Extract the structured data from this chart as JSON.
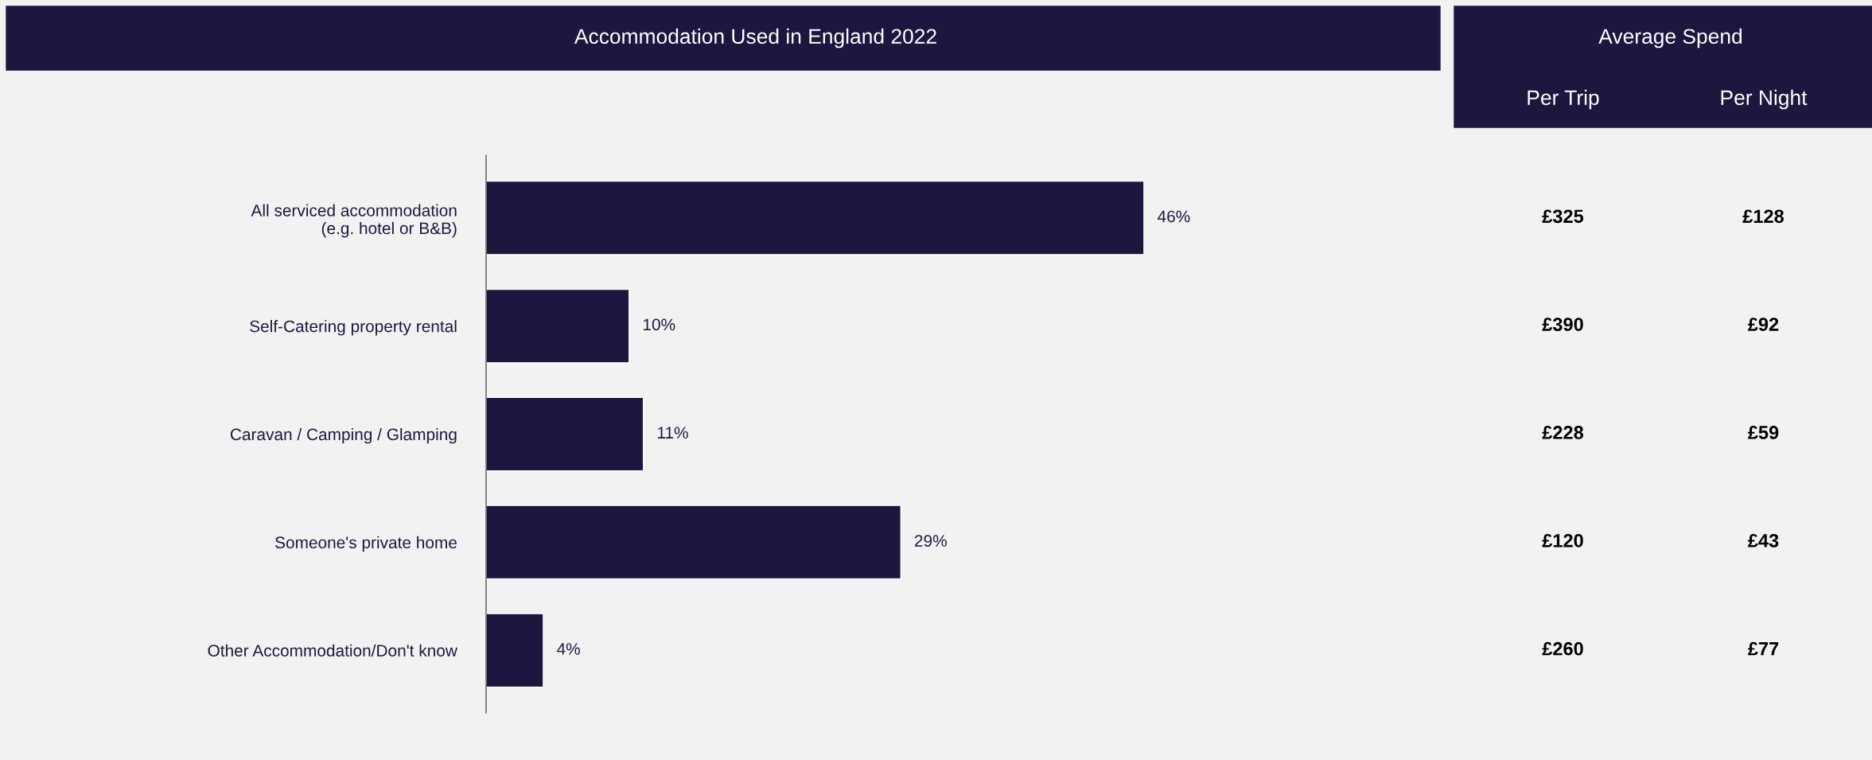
{
  "chart_data": [
    {
      "type": "bar",
      "orientation": "horizontal",
      "title": "Accommodation Used in England 2022",
      "categories": [
        "All serviced accommodation\n(e.g. hotel or B&B)",
        "Self-Catering property rental",
        "Caravan / Camping / Glamping",
        "Someone's private home",
        "Other Accommodation/Don't know"
      ],
      "values": [
        46,
        10,
        11,
        29,
        4
      ],
      "value_labels": [
        "46%",
        "10%",
        "11%",
        "29%",
        "4%"
      ],
      "color": "#1f1640",
      "grid": false,
      "legend": false,
      "tick_labels": "y"
    },
    {
      "type": "other",
      "title": "Average Spend",
      "categories": [
        "Per Trip",
        "Per Night"
      ],
      "cell_labels": [
        [
          "£325",
          "£128"
        ],
        [
          "£390",
          "£92"
        ],
        [
          "£228",
          "£59"
        ],
        [
          "£120",
          "£43"
        ],
        [
          "£260",
          "£77"
        ]
      ]
    }
  ]
}
